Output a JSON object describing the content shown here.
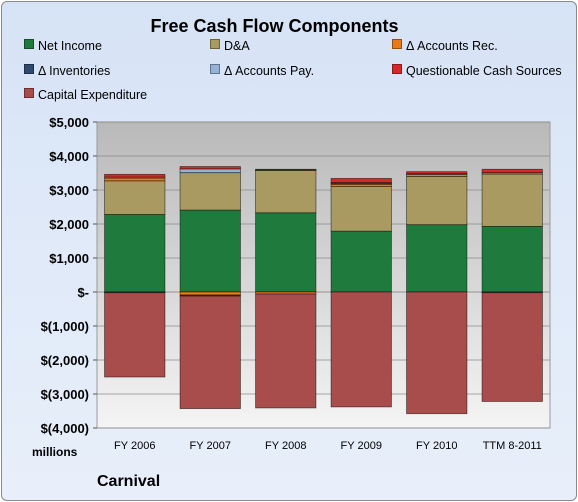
{
  "chart_data": {
    "type": "bar",
    "stacked": true,
    "title": "Free Cash Flow Components",
    "ylabel": "millions",
    "ylim": [
      -4000,
      5000
    ],
    "y_ticks": [
      5000,
      4000,
      3000,
      2000,
      1000,
      0,
      -1000,
      -2000,
      -3000,
      -4000
    ],
    "y_tick_labels": [
      "$5,000",
      "$4,000",
      "$3,000",
      "$2,000",
      "$1,000",
      "$-",
      "$(1,000)",
      "$(2,000)",
      "$(3,000)",
      "$(4,000)"
    ],
    "grid": true,
    "legend_position": "top",
    "categories": [
      "FY 2006",
      "FY 2007",
      "FY 2008",
      "FY 2009",
      "FY 2010",
      "TTM 8-2011"
    ],
    "series": [
      {
        "name": "Net Income",
        "color": "#1f7a3e",
        "values": [
          2280,
          2410,
          2330,
          1790,
          1980,
          1930
        ]
      },
      {
        "name": "D&A",
        "color": "#a89a60",
        "values": [
          990,
          1100,
          1250,
          1310,
          1420,
          1540
        ]
      },
      {
        "name": "Δ Accounts Rec.",
        "color": "#e87a17",
        "values": [
          80,
          -90,
          -60,
          70,
          60,
          40
        ]
      },
      {
        "name": "Δ Inventories",
        "color": "#2e4a6e",
        "values": [
          -20,
          -30,
          20,
          30,
          0,
          -20
        ]
      },
      {
        "name": "Δ Accounts Pay.",
        "color": "#95b3d7",
        "values": [
          30,
          110,
          0,
          20,
          20,
          0
        ]
      },
      {
        "name": "Questionable Cash Sources",
        "color": "#d62828",
        "values": [
          80,
          70,
          10,
          120,
          60,
          100
        ]
      },
      {
        "name": "Capital Expenditure",
        "color": "#a84c4c",
        "values": [
          -2480,
          -3310,
          -3350,
          -3380,
          -3580,
          -3200
        ]
      }
    ]
  },
  "brand_label": "Carnival"
}
